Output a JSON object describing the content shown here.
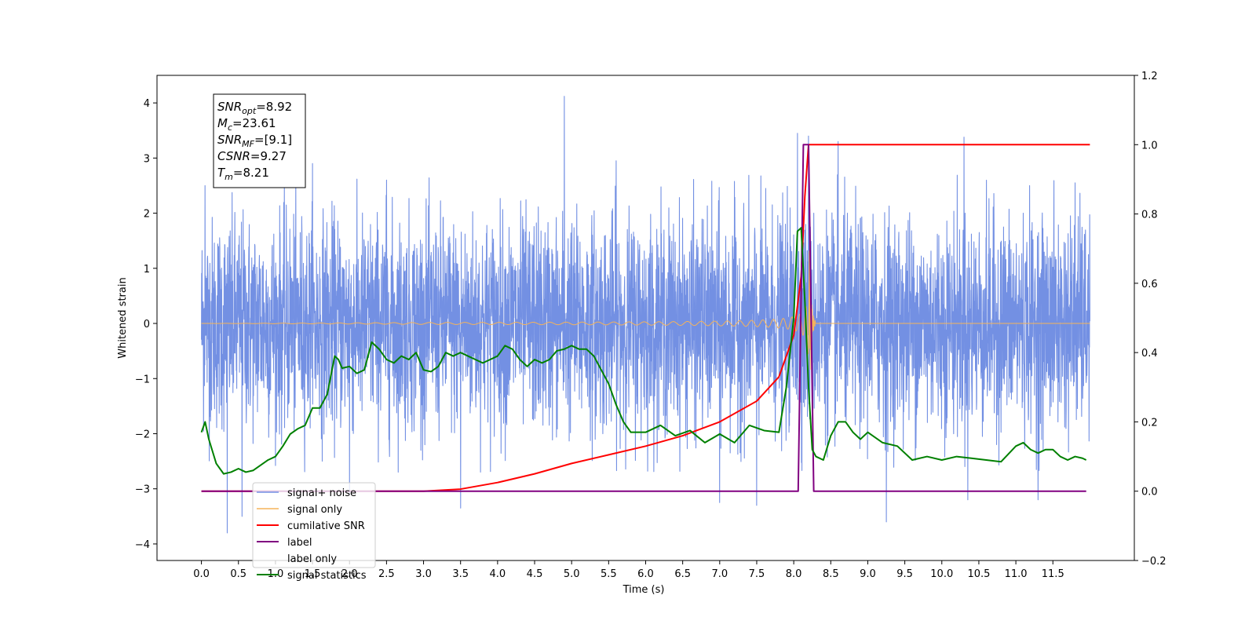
{
  "chart_data": {
    "type": "line",
    "xlabel": "Time (s)",
    "ylabel": "Whitened strain",
    "xlim": [
      -0.6,
      12.6
    ],
    "ylim": [
      -4.3,
      4.5
    ],
    "y2lim": [
      -0.2,
      1.2
    ],
    "x_ticks": [
      0.0,
      0.5,
      1.0,
      1.5,
      2.0,
      2.5,
      3.0,
      3.5,
      4.0,
      4.5,
      5.0,
      5.5,
      6.0,
      6.5,
      7.0,
      7.5,
      8.0,
      8.5,
      9.0,
      9.5,
      10.0,
      10.5,
      11.0,
      11.5
    ],
    "x_tick_labels": [
      "0.0",
      "0.5",
      "1.0",
      "1.5",
      "2.0",
      "2.5",
      "3.0",
      "3.5",
      "4.0",
      "4.5",
      "5.0",
      "5.5",
      "6.0",
      "6.5",
      "7.0",
      "7.5",
      "8.0",
      "8.5",
      "9.0",
      "9.5",
      "10.0",
      "10.5",
      "11.0",
      "11.5"
    ],
    "y_ticks": [
      -4,
      -3,
      -2,
      -1,
      0,
      1,
      2,
      3,
      4
    ],
    "y_tick_labels": [
      "−4",
      "−3",
      "−2",
      "−1",
      "0",
      "1",
      "2",
      "3",
      "4"
    ],
    "y2_ticks": [
      -0.2,
      0.0,
      0.2,
      0.4,
      0.6,
      0.8,
      1.0,
      1.2
    ],
    "y2_tick_labels": [
      "−0.2",
      "0.0",
      "0.2",
      "0.4",
      "0.6",
      "0.8",
      "1.0",
      "1.2"
    ],
    "grid": false,
    "legend_position": "bottom-left",
    "info_box": {
      "lines": [
        {
          "base": "SNR",
          "sub": "opt",
          "value": "=8.92"
        },
        {
          "base": "M",
          "sub": "c",
          "value": "=23.61"
        },
        {
          "base": "SNR",
          "sub": "MF",
          "value": "=[9.1]"
        },
        {
          "base": "CSNR",
          "sub": "",
          "value": "=9.27"
        },
        {
          "base": "T",
          "sub": "m",
          "value": "=8.21"
        }
      ]
    },
    "series": [
      {
        "name": "signal+ noise",
        "axis": "left",
        "color": "#7390e3",
        "kind": "noise",
        "x_range": [
          0.0,
          12.0
        ],
        "sigma": 1.0,
        "peaks": [
          [
            0.05,
            2.5
          ],
          [
            0.35,
            -3.8
          ],
          [
            0.55,
            -3.5
          ],
          [
            1.5,
            2.9
          ],
          [
            2.0,
            -3.1
          ],
          [
            2.5,
            2.6
          ],
          [
            3.5,
            -3.35
          ],
          [
            4.9,
            4.12
          ],
          [
            5.6,
            2.95
          ],
          [
            7.0,
            -3.25
          ],
          [
            7.5,
            -3.3
          ],
          [
            8.05,
            3.45
          ],
          [
            8.2,
            3.4
          ],
          [
            8.6,
            3.3
          ],
          [
            9.25,
            -3.6
          ],
          [
            10.3,
            3.38
          ],
          [
            10.35,
            -3.2
          ],
          [
            11.3,
            -3.2
          ],
          [
            11.8,
            2.55
          ]
        ]
      },
      {
        "name": "signal only",
        "axis": "left",
        "color": "#f5b35a",
        "kind": "chirp",
        "x_range": [
          0.0,
          12.0
        ],
        "merger_time": 8.21,
        "peak_amplitude": 1.4
      },
      {
        "name": "cumilative SNR",
        "axis": "right",
        "color": "#ff0000",
        "x": [
          0.0,
          3.0,
          3.5,
          4.0,
          4.5,
          5.0,
          5.5,
          6.0,
          6.5,
          7.0,
          7.5,
          7.8,
          8.0,
          8.1,
          8.15,
          8.2,
          12.0
        ],
        "y": [
          0.0,
          0.0,
          0.006,
          0.025,
          0.05,
          0.08,
          0.105,
          0.13,
          0.16,
          0.2,
          0.26,
          0.33,
          0.45,
          0.62,
          0.85,
          1.0,
          1.0
        ]
      },
      {
        "name": "label",
        "axis": "right",
        "color": "#800080",
        "x": [
          0.0,
          8.06,
          8.13,
          8.2,
          8.27,
          11.95
        ],
        "y": [
          0.0,
          0.0,
          1.0,
          1.0,
          0.0,
          0.0
        ]
      },
      {
        "name": "label only",
        "axis": "right",
        "color": "#ffffff",
        "x": [],
        "y": []
      },
      {
        "name": "signal statistics",
        "axis": "right",
        "color": "#008000",
        "x": [
          0.0,
          0.05,
          0.1,
          0.2,
          0.3,
          0.4,
          0.5,
          0.6,
          0.7,
          0.8,
          0.9,
          1.0,
          1.1,
          1.2,
          1.3,
          1.4,
          1.5,
          1.6,
          1.7,
          1.8,
          1.85,
          1.9,
          2.0,
          2.1,
          2.2,
          2.3,
          2.4,
          2.5,
          2.6,
          2.7,
          2.8,
          2.9,
          3.0,
          3.1,
          3.2,
          3.3,
          3.4,
          3.5,
          3.6,
          3.7,
          3.8,
          3.9,
          4.0,
          4.1,
          4.2,
          4.3,
          4.4,
          4.5,
          4.6,
          4.7,
          4.8,
          4.9,
          5.0,
          5.1,
          5.2,
          5.3,
          5.4,
          5.5,
          5.6,
          5.7,
          5.8,
          5.9,
          6.0,
          6.2,
          6.4,
          6.6,
          6.8,
          7.0,
          7.2,
          7.4,
          7.6,
          7.8,
          7.9,
          8.0,
          8.05,
          8.1,
          8.15,
          8.2,
          8.25,
          8.3,
          8.4,
          8.5,
          8.6,
          8.7,
          8.8,
          8.9,
          9.0,
          9.2,
          9.4,
          9.6,
          9.8,
          10.0,
          10.2,
          10.4,
          10.6,
          10.8,
          11.0,
          11.1,
          11.2,
          11.3,
          11.4,
          11.5,
          11.6,
          11.7,
          11.8,
          11.9,
          11.95
        ],
        "y": [
          0.17,
          0.2,
          0.15,
          0.08,
          0.05,
          0.055,
          0.065,
          0.055,
          0.06,
          0.075,
          0.09,
          0.1,
          0.13,
          0.165,
          0.18,
          0.19,
          0.24,
          0.24,
          0.28,
          0.39,
          0.38,
          0.355,
          0.36,
          0.34,
          0.35,
          0.43,
          0.41,
          0.38,
          0.37,
          0.39,
          0.38,
          0.4,
          0.35,
          0.345,
          0.36,
          0.4,
          0.39,
          0.4,
          0.39,
          0.38,
          0.37,
          0.38,
          0.39,
          0.42,
          0.41,
          0.38,
          0.36,
          0.38,
          0.37,
          0.38,
          0.405,
          0.41,
          0.42,
          0.41,
          0.41,
          0.39,
          0.35,
          0.31,
          0.25,
          0.2,
          0.17,
          0.17,
          0.17,
          0.19,
          0.16,
          0.175,
          0.14,
          0.165,
          0.14,
          0.19,
          0.175,
          0.17,
          0.3,
          0.5,
          0.75,
          0.76,
          0.55,
          0.3,
          0.12,
          0.1,
          0.09,
          0.16,
          0.2,
          0.2,
          0.17,
          0.15,
          0.17,
          0.14,
          0.13,
          0.09,
          0.1,
          0.09,
          0.1,
          0.095,
          0.09,
          0.085,
          0.13,
          0.14,
          0.12,
          0.11,
          0.12,
          0.12,
          0.1,
          0.09,
          0.1,
          0.095,
          0.09
        ]
      }
    ]
  }
}
